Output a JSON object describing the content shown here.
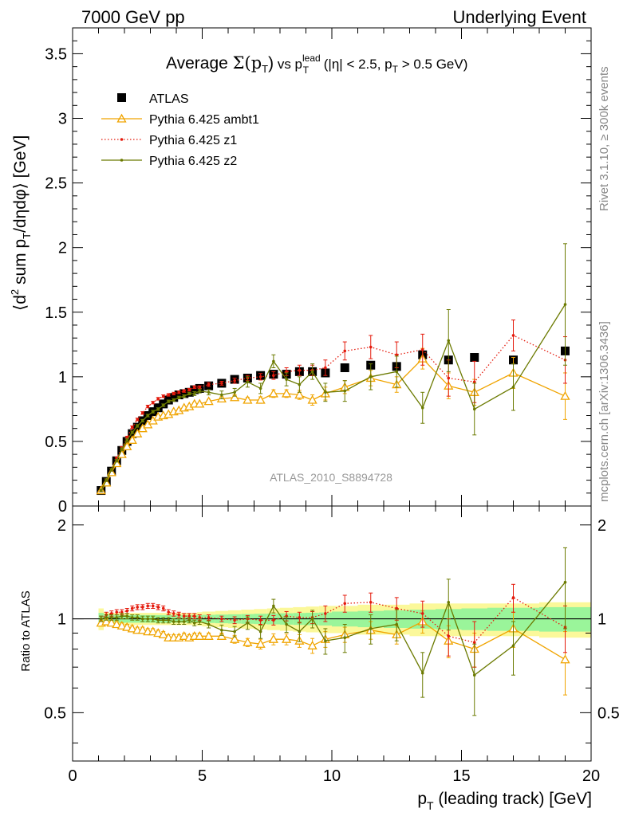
{
  "header": {
    "left": "7000 GeV pp",
    "right": "Underlying Event"
  },
  "side_labels": {
    "rivet": "Rivet 3.1.10, ≥ 300k events",
    "mcplots": "mcplots.cern.ch [arXiv:1306.3436]"
  },
  "analysis_id": "ATLAS_2010_S8894728",
  "colors": {
    "atlas": "#000000",
    "ambt1": "#f0a400",
    "z1": "#e41a0c",
    "z2": "#6b7a00",
    "band_inner": "#9af59a",
    "band_outer": "#fbf89a"
  },
  "chart_data": [
    {
      "type": "scatter",
      "panel": "main",
      "title_parts": {
        "prefix": "Average ",
        "sigma": "Σ(p",
        "sigma_sub": "T",
        "sigma_close": ")",
        "vs": " vs p",
        "vs_sup": "lead",
        "vs_sub": "T",
        "cuts_a": " (|η| < 2.5, p",
        "cuts_sub": "T",
        "cuts_b": " > 0.5 GeV)"
      },
      "ylabel_parts": {
        "a": "⟨d",
        "sup": "2",
        "b": " sum p",
        "sub": "T",
        "c": "/dηdφ⟩ [GeV]"
      },
      "xlim": [
        0,
        20
      ],
      "ylim": [
        0,
        3.7
      ],
      "yticks": [
        "0",
        "0.5",
        "1",
        "1.5",
        "2",
        "2.5",
        "3",
        "3.5"
      ],
      "legend_placement": "top-left",
      "series": [
        {
          "name": "ATLAS",
          "style": "square",
          "x": [
            1.1,
            1.3,
            1.5,
            1.7,
            1.9,
            2.1,
            2.3,
            2.5,
            2.7,
            2.9,
            3.1,
            3.3,
            3.5,
            3.7,
            3.9,
            4.1,
            4.3,
            4.5,
            4.7,
            4.9,
            5.25,
            5.75,
            6.25,
            6.75,
            7.25,
            7.75,
            8.25,
            8.75,
            9.25,
            9.75,
            10.5,
            11.5,
            12.5,
            13.5,
            14.5,
            15.5,
            17,
            19
          ],
          "y": [
            0.12,
            0.19,
            0.27,
            0.35,
            0.43,
            0.5,
            0.56,
            0.61,
            0.66,
            0.7,
            0.73,
            0.76,
            0.79,
            0.82,
            0.84,
            0.86,
            0.87,
            0.88,
            0.9,
            0.91,
            0.93,
            0.95,
            0.98,
            0.99,
            1.01,
            1.02,
            1.02,
            1.04,
            1.04,
            1.03,
            1.07,
            1.09,
            1.08,
            1.17,
            1.13,
            1.15,
            1.13,
            1.2
          ]
        },
        {
          "name": "Pythia 6.425 ambt1",
          "style": "triangle",
          "x": [
            1.1,
            1.3,
            1.5,
            1.7,
            1.9,
            2.1,
            2.3,
            2.5,
            2.7,
            2.9,
            3.1,
            3.3,
            3.5,
            3.7,
            3.9,
            4.1,
            4.3,
            4.5,
            4.7,
            4.9,
            5.25,
            5.75,
            6.25,
            6.75,
            7.25,
            7.75,
            8.25,
            8.75,
            9.25,
            9.75,
            10.5,
            11.5,
            12.5,
            13.5,
            14.5,
            15.5,
            17,
            19
          ],
          "y": [
            0.12,
            0.18,
            0.26,
            0.33,
            0.4,
            0.46,
            0.51,
            0.56,
            0.6,
            0.63,
            0.66,
            0.69,
            0.7,
            0.71,
            0.73,
            0.74,
            0.76,
            0.77,
            0.79,
            0.79,
            0.81,
            0.83,
            0.84,
            0.82,
            0.82,
            0.87,
            0.87,
            0.86,
            0.82,
            0.87,
            0.92,
            0.99,
            0.94,
            1.14,
            0.93,
            0.88,
            1.03,
            0.85
          ],
          "err": [
            0.01,
            0.01,
            0.01,
            0.01,
            0.01,
            0.01,
            0.01,
            0.01,
            0.01,
            0.01,
            0.01,
            0.01,
            0.01,
            0.01,
            0.01,
            0.01,
            0.01,
            0.01,
            0.01,
            0.01,
            0.015,
            0.015,
            0.02,
            0.02,
            0.025,
            0.03,
            0.03,
            0.035,
            0.04,
            0.05,
            0.05,
            0.06,
            0.06,
            0.08,
            0.1,
            0.1,
            0.12,
            0.18
          ]
        },
        {
          "name": "Pythia 6.425 z1",
          "style": "dotted",
          "x": [
            1.1,
            1.3,
            1.5,
            1.7,
            1.9,
            2.1,
            2.3,
            2.5,
            2.7,
            2.9,
            3.1,
            3.3,
            3.5,
            3.7,
            3.9,
            4.1,
            4.3,
            4.5,
            4.7,
            4.9,
            5.25,
            5.75,
            6.25,
            6.75,
            7.25,
            7.75,
            8.25,
            8.75,
            9.25,
            9.75,
            10.5,
            11.5,
            12.5,
            13.5,
            14.5,
            15.5,
            17,
            19
          ],
          "y": [
            0.12,
            0.2,
            0.28,
            0.37,
            0.45,
            0.53,
            0.61,
            0.67,
            0.72,
            0.77,
            0.8,
            0.83,
            0.85,
            0.86,
            0.87,
            0.88,
            0.89,
            0.9,
            0.92,
            0.92,
            0.94,
            0.95,
            0.97,
            0.99,
            1.0,
            1.01,
            1.04,
            1.05,
            1.05,
            1.07,
            1.2,
            1.23,
            1.17,
            1.21,
            0.99,
            0.96,
            1.32,
            1.13
          ],
          "err": [
            0.01,
            0.01,
            0.01,
            0.01,
            0.01,
            0.01,
            0.01,
            0.01,
            0.01,
            0.01,
            0.01,
            0.01,
            0.01,
            0.01,
            0.01,
            0.01,
            0.01,
            0.01,
            0.01,
            0.01,
            0.015,
            0.015,
            0.02,
            0.02,
            0.025,
            0.03,
            0.03,
            0.04,
            0.04,
            0.06,
            0.07,
            0.09,
            0.1,
            0.12,
            0.14,
            0.16,
            0.12,
            0.18
          ]
        },
        {
          "name": "Pythia 6.425 z2",
          "style": "solid-dot",
          "x": [
            1.1,
            1.3,
            1.5,
            1.7,
            1.9,
            2.1,
            2.3,
            2.5,
            2.7,
            2.9,
            3.1,
            3.3,
            3.5,
            3.7,
            3.9,
            4.1,
            4.3,
            4.5,
            4.7,
            4.9,
            5.25,
            5.75,
            6.25,
            6.75,
            7.25,
            7.75,
            8.25,
            8.75,
            9.25,
            9.75,
            10.5,
            11.5,
            12.5,
            13.5,
            14.5,
            15.5,
            17,
            19
          ],
          "y": [
            0.12,
            0.2,
            0.28,
            0.35,
            0.44,
            0.51,
            0.57,
            0.62,
            0.66,
            0.7,
            0.73,
            0.75,
            0.78,
            0.81,
            0.82,
            0.84,
            0.85,
            0.87,
            0.87,
            0.89,
            0.88,
            0.86,
            0.88,
            0.96,
            0.91,
            1.12,
            0.98,
            0.94,
            1.04,
            0.88,
            0.89,
            1.0,
            1.04,
            0.76,
            1.28,
            0.75,
            0.92,
            1.56
          ],
          "err": [
            0.01,
            0.01,
            0.01,
            0.01,
            0.01,
            0.01,
            0.01,
            0.01,
            0.01,
            0.01,
            0.01,
            0.01,
            0.01,
            0.01,
            0.01,
            0.01,
            0.01,
            0.01,
            0.015,
            0.015,
            0.02,
            0.03,
            0.03,
            0.04,
            0.04,
            0.05,
            0.05,
            0.06,
            0.06,
            0.07,
            0.08,
            0.1,
            0.12,
            0.12,
            0.24,
            0.2,
            0.18,
            0.47
          ]
        }
      ]
    },
    {
      "type": "scatter",
      "panel": "ratio",
      "ylabel": "Ratio to ATLAS",
      "xlabel_parts": {
        "a": "p",
        "sub": "T",
        "b": " (leading track) [GeV]"
      },
      "xlim": [
        0,
        20
      ],
      "ylim": [
        0.35,
        2.3
      ],
      "xticks": [
        "0",
        "5",
        "10",
        "15",
        "20"
      ],
      "yticks": [
        "0.5",
        "1",
        "2"
      ],
      "reference_band": {
        "x_edges": [
          1.0,
          1.2,
          1.4,
          1.6,
          1.8,
          2.0,
          2.2,
          2.4,
          2.6,
          2.8,
          3.0,
          3.2,
          3.4,
          3.6,
          3.8,
          4.0,
          4.2,
          4.4,
          4.6,
          4.8,
          5.0,
          5.5,
          6.0,
          6.5,
          7.0,
          7.5,
          8.0,
          8.5,
          9.0,
          9.5,
          10.0,
          11.0,
          12.0,
          13.0,
          14.0,
          15.0,
          16.0,
          18.0,
          20.0
        ],
        "inner": [
          0.045,
          0.03,
          0.03,
          0.028,
          0.028,
          0.028,
          0.028,
          0.028,
          0.028,
          0.028,
          0.028,
          0.028,
          0.028,
          0.028,
          0.028,
          0.028,
          0.028,
          0.028,
          0.028,
          0.028,
          0.03,
          0.032,
          0.034,
          0.036,
          0.038,
          0.04,
          0.042,
          0.044,
          0.046,
          0.048,
          0.055,
          0.06,
          0.065,
          0.07,
          0.075,
          0.08,
          0.085,
          0.09
        ],
        "outer": [
          0.08,
          0.05,
          0.045,
          0.045,
          0.045,
          0.045,
          0.045,
          0.045,
          0.045,
          0.045,
          0.045,
          0.045,
          0.045,
          0.045,
          0.045,
          0.045,
          0.045,
          0.045,
          0.045,
          0.05,
          0.055,
          0.06,
          0.065,
          0.07,
          0.075,
          0.08,
          0.085,
          0.09,
          0.095,
          0.1,
          0.1,
          0.11,
          0.11,
          0.12,
          0.12,
          0.12,
          0.12,
          0.13
        ]
      },
      "series": [
        {
          "name": "Pythia 6.425 ambt1",
          "style": "triangle",
          "x": [
            1.1,
            1.3,
            1.5,
            1.7,
            1.9,
            2.1,
            2.3,
            2.5,
            2.7,
            2.9,
            3.1,
            3.3,
            3.5,
            3.7,
            3.9,
            4.1,
            4.3,
            4.5,
            4.7,
            4.9,
            5.25,
            5.75,
            6.25,
            6.75,
            7.25,
            7.75,
            8.25,
            8.75,
            9.25,
            9.75,
            10.5,
            11.5,
            12.5,
            13.5,
            14.5,
            15.5,
            17,
            19
          ],
          "y": [
            0.97,
            0.98,
            0.97,
            0.96,
            0.95,
            0.94,
            0.93,
            0.92,
            0.92,
            0.91,
            0.91,
            0.9,
            0.89,
            0.87,
            0.87,
            0.87,
            0.88,
            0.87,
            0.88,
            0.88,
            0.88,
            0.88,
            0.86,
            0.84,
            0.83,
            0.86,
            0.86,
            0.85,
            0.82,
            0.86,
            0.89,
            0.92,
            0.89,
            0.98,
            0.85,
            0.8,
            0.93,
            0.74
          ],
          "err": [
            0.02,
            0.02,
            0.02,
            0.02,
            0.02,
            0.02,
            0.02,
            0.02,
            0.02,
            0.02,
            0.02,
            0.02,
            0.02,
            0.02,
            0.02,
            0.02,
            0.02,
            0.02,
            0.02,
            0.02,
            0.02,
            0.02,
            0.025,
            0.025,
            0.03,
            0.035,
            0.035,
            0.04,
            0.045,
            0.05,
            0.05,
            0.06,
            0.06,
            0.08,
            0.1,
            0.1,
            0.12,
            0.17
          ]
        },
        {
          "name": "Pythia 6.425 z1",
          "style": "dotted",
          "x": [
            1.1,
            1.3,
            1.5,
            1.7,
            1.9,
            2.1,
            2.3,
            2.5,
            2.7,
            2.9,
            3.1,
            3.3,
            3.5,
            3.7,
            3.9,
            4.1,
            4.3,
            4.5,
            4.7,
            4.9,
            5.25,
            5.75,
            6.25,
            6.75,
            7.25,
            7.75,
            8.25,
            8.75,
            9.25,
            9.75,
            10.5,
            11.5,
            12.5,
            13.5,
            14.5,
            15.5,
            17,
            19
          ],
          "y": [
            1.0,
            1.03,
            1.04,
            1.05,
            1.05,
            1.06,
            1.08,
            1.09,
            1.09,
            1.1,
            1.1,
            1.09,
            1.08,
            1.05,
            1.04,
            1.03,
            1.02,
            1.02,
            1.02,
            1.01,
            1.01,
            1.0,
            0.99,
            1.0,
            0.99,
            0.99,
            1.02,
            1.01,
            1.01,
            1.04,
            1.12,
            1.13,
            1.08,
            1.04,
            0.88,
            0.84,
            1.17,
            0.94
          ],
          "err": [
            0.02,
            0.02,
            0.02,
            0.02,
            0.02,
            0.02,
            0.02,
            0.02,
            0.02,
            0.02,
            0.02,
            0.02,
            0.02,
            0.02,
            0.02,
            0.02,
            0.02,
            0.02,
            0.02,
            0.02,
            0.02,
            0.02,
            0.025,
            0.025,
            0.03,
            0.035,
            0.035,
            0.04,
            0.045,
            0.06,
            0.07,
            0.08,
            0.09,
            0.1,
            0.12,
            0.14,
            0.12,
            0.16
          ]
        },
        {
          "name": "Pythia 6.425 z2",
          "style": "solid-dot",
          "x": [
            1.1,
            1.3,
            1.5,
            1.7,
            1.9,
            2.1,
            2.3,
            2.5,
            2.7,
            2.9,
            3.1,
            3.3,
            3.5,
            3.7,
            3.9,
            4.1,
            4.3,
            4.5,
            4.7,
            4.9,
            5.25,
            5.75,
            6.25,
            6.75,
            7.25,
            7.75,
            8.25,
            8.75,
            9.25,
            9.75,
            10.5,
            11.5,
            12.5,
            13.5,
            14.5,
            15.5,
            17,
            19
          ],
          "y": [
            1.0,
            1.01,
            1.01,
            1.01,
            1.02,
            1.02,
            1.01,
            1.01,
            1.0,
            1.0,
            1.0,
            0.99,
            0.99,
            0.99,
            0.98,
            0.98,
            0.98,
            0.99,
            0.97,
            0.98,
            0.96,
            0.92,
            0.91,
            0.97,
            0.91,
            1.1,
            0.96,
            0.91,
            1.0,
            0.85,
            0.87,
            0.93,
            0.96,
            0.67,
            1.13,
            0.66,
            0.82,
            1.31
          ],
          "err": [
            0.02,
            0.02,
            0.02,
            0.02,
            0.02,
            0.02,
            0.02,
            0.02,
            0.02,
            0.02,
            0.02,
            0.02,
            0.02,
            0.02,
            0.02,
            0.02,
            0.02,
            0.02,
            0.02,
            0.02,
            0.025,
            0.035,
            0.035,
            0.045,
            0.045,
            0.055,
            0.055,
            0.065,
            0.065,
            0.08,
            0.09,
            0.1,
            0.11,
            0.11,
            0.21,
            0.17,
            0.16,
            0.38
          ]
        }
      ]
    }
  ]
}
